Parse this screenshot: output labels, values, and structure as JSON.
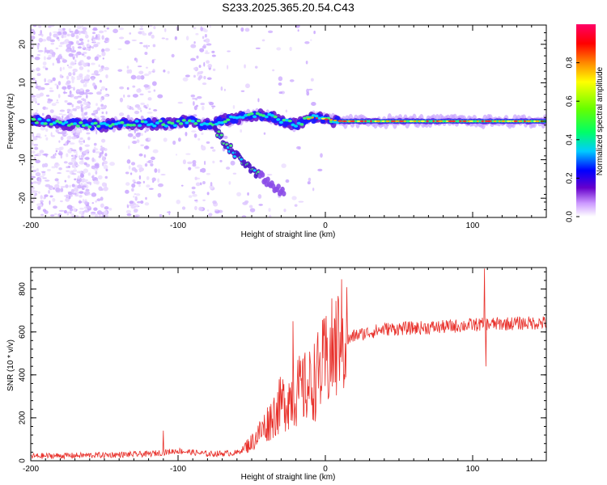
{
  "chart_data": [
    {
      "type": "heatmap",
      "title": "S233.2025.365.20.54.C43",
      "xlabel": "Height of straight line (km)",
      "ylabel": "Frequency (Hz)",
      "xlim": [
        -200,
        150
      ],
      "ylim": [
        -25,
        25
      ],
      "x_ticks": [
        -200,
        -100,
        0,
        100
      ],
      "x_tick_labels": [
        "-200",
        "-100",
        "0",
        "100"
      ],
      "y_ticks": [
        -20,
        -10,
        0,
        10,
        20
      ],
      "y_tick_labels": [
        "-20",
        "-10",
        "0",
        "10",
        "20"
      ],
      "colorbar": {
        "label": "Normalized spectral amplitude",
        "range": [
          0,
          1
        ],
        "ticks": [
          0.0,
          0.2,
          0.4,
          0.6,
          0.8
        ],
        "tick_labels": [
          "0.0",
          "0.2",
          "0.4",
          "0.6",
          "0.8"
        ],
        "colors": [
          "#ffffff",
          "#cc99ff",
          "#6600cc",
          "#0000ff",
          "#00ccff",
          "#00ff66",
          "#66ff00",
          "#ffff00",
          "#ff8800",
          "#ff0000",
          "#ff0066"
        ]
      },
      "ridge": [
        {
          "x": -200,
          "y": 0.5
        },
        {
          "x": -180,
          "y": -0.5
        },
        {
          "x": -160,
          "y": -1
        },
        {
          "x": -140,
          "y": -0.8
        },
        {
          "x": -120,
          "y": -0.6
        },
        {
          "x": -100,
          "y": -0.5
        },
        {
          "x": -90,
          "y": 0
        },
        {
          "x": -80,
          "y": -1
        },
        {
          "x": -70,
          "y": 0
        },
        {
          "x": -50,
          "y": 1.5
        },
        {
          "x": -40,
          "y": 1.5
        },
        {
          "x": -30,
          "y": 0
        },
        {
          "x": -20,
          "y": -1
        },
        {
          "x": -10,
          "y": 1
        },
        {
          "x": 0,
          "y": 0.5
        },
        {
          "x": 10,
          "y": 0
        },
        {
          "x": 150,
          "y": 0
        }
      ],
      "branch": [
        {
          "x": -75,
          "y": -2
        },
        {
          "x": -65,
          "y": -7
        },
        {
          "x": -55,
          "y": -11
        },
        {
          "x": -45,
          "y": -14
        },
        {
          "x": -35,
          "y": -17
        },
        {
          "x": -28,
          "y": -19
        }
      ]
    },
    {
      "type": "line",
      "xlabel": "Height of straight line (km)",
      "ylabel": "SNR (10 * v/v)",
      "xlim": [
        -200,
        150
      ],
      "ylim": [
        0,
        900
      ],
      "x_ticks": [
        -200,
        -100,
        0,
        100
      ],
      "x_tick_labels": [
        "-200",
        "-100",
        "0",
        "100"
      ],
      "y_ticks": [
        0,
        200,
        400,
        600,
        800
      ],
      "y_tick_labels": [
        "0",
        "200",
        "400",
        "600",
        "800"
      ],
      "color": "#e8302a",
      "trend": [
        {
          "x": -200,
          "y": 20
        },
        {
          "x": -150,
          "y": 25
        },
        {
          "x": -120,
          "y": 30
        },
        {
          "x": -100,
          "y": 45
        },
        {
          "x": -80,
          "y": 30
        },
        {
          "x": -60,
          "y": 35
        },
        {
          "x": -50,
          "y": 80
        },
        {
          "x": -40,
          "y": 160
        },
        {
          "x": -30,
          "y": 250
        },
        {
          "x": -20,
          "y": 300
        },
        {
          "x": -10,
          "y": 330
        },
        {
          "x": 0,
          "y": 430
        },
        {
          "x": 10,
          "y": 530
        },
        {
          "x": 20,
          "y": 580
        },
        {
          "x": 40,
          "y": 610
        },
        {
          "x": 60,
          "y": 615
        },
        {
          "x": 80,
          "y": 620
        },
        {
          "x": 100,
          "y": 630
        },
        {
          "x": 120,
          "y": 635
        },
        {
          "x": 150,
          "y": 640
        }
      ],
      "spikes": [
        {
          "x": -110,
          "y": 140
        },
        {
          "x": -22,
          "y": 650
        },
        {
          "x": 10,
          "y": 600
        },
        {
          "x": 108,
          "y": 895
        },
        {
          "x": 109,
          "y": 440
        }
      ]
    }
  ]
}
